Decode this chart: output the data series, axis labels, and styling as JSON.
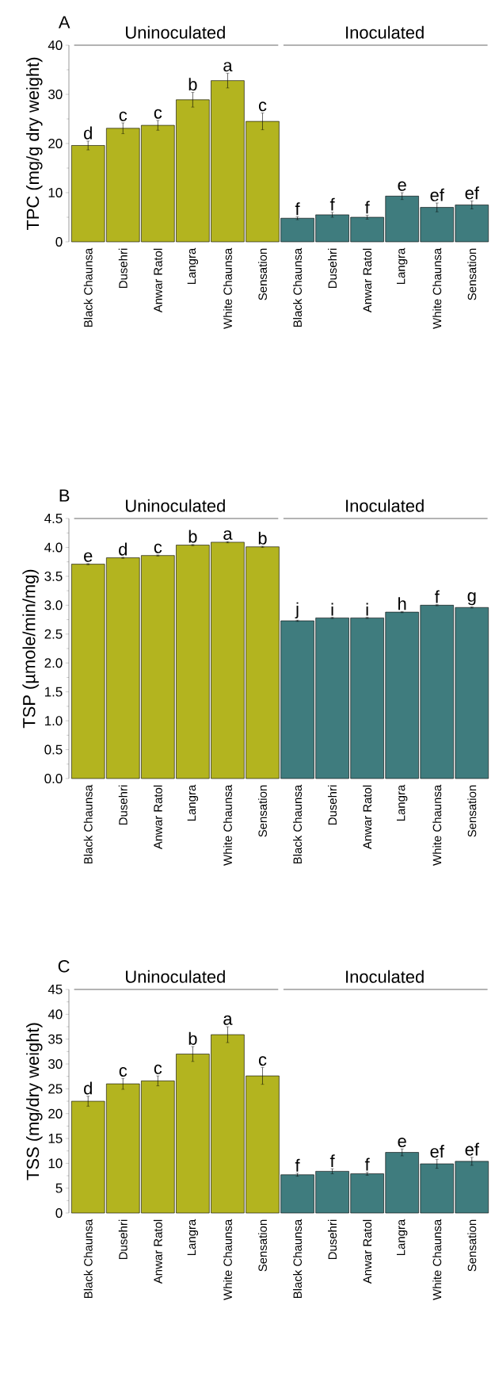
{
  "chart_data": [
    {
      "type": "bar",
      "title": "A",
      "ylabel": "TPC (mg/g dry weight)",
      "categories": [
        "Black Chaunsa",
        "Dusehri",
        "Anwar Ratol",
        "Langra",
        "White Chaunsa",
        "Sensation",
        "Black Chaunsa",
        "Dusehri",
        "Anwar Ratol",
        "Langra",
        "White Chaunsa",
        "Sensation"
      ],
      "series": [
        {
          "color": "#b3b41f",
          "values": [
            19.6,
            23.1,
            23.7,
            28.9,
            32.8,
            24.5,
            null,
            null,
            null,
            null,
            null,
            null
          ],
          "errors": [
            0.9,
            1.1,
            1.0,
            1.5,
            1.5,
            1.7,
            null,
            null,
            null,
            null,
            null,
            null
          ],
          "value_labels": [
            "d",
            "c",
            "c",
            "b",
            "a",
            "c",
            null,
            null,
            null,
            null,
            null,
            null
          ]
        },
        {
          "color": "#3f7c7e",
          "values": [
            null,
            null,
            null,
            null,
            null,
            null,
            4.8,
            5.5,
            5.0,
            9.3,
            7.0,
            7.5
          ],
          "errors": [
            null,
            null,
            null,
            null,
            null,
            null,
            0.3,
            0.5,
            0.4,
            0.7,
            0.9,
            0.8
          ],
          "value_labels": [
            null,
            null,
            null,
            null,
            null,
            null,
            "f",
            "f",
            "f",
            "e",
            "ef",
            "ef"
          ]
        }
      ],
      "annotations": [
        "Uninoculated",
        "Inoculated"
      ],
      "ylim": [
        0,
        40
      ],
      "yticks": [
        0,
        10,
        20,
        30,
        40
      ]
    },
    {
      "type": "bar",
      "title": "B",
      "ylabel": "TSP  (µmole/min/mg)",
      "categories": [
        "Black Chaunsa",
        "Dusehri",
        "Anwar Ratol",
        "Langra",
        "White Chaunsa",
        "Sensation",
        "Black Chaunsa",
        "Dusehri",
        "Anwar Ratol",
        "Langra",
        "White Chaunsa",
        "Sensation"
      ],
      "series": [
        {
          "color": "#b3b41f",
          "values": [
            3.71,
            3.82,
            3.86,
            4.04,
            4.09,
            4.01,
            null,
            null,
            null,
            null,
            null,
            null
          ],
          "errors": [
            0.01,
            0.01,
            0.01,
            0.01,
            0.01,
            0.01,
            null,
            null,
            null,
            null,
            null,
            null
          ],
          "value_labels": [
            "e",
            "d",
            "c",
            "b",
            "a",
            "b",
            null,
            null,
            null,
            null,
            null,
            null
          ]
        },
        {
          "color": "#3f7c7e",
          "values": [
            null,
            null,
            null,
            null,
            null,
            null,
            2.73,
            2.78,
            2.78,
            2.88,
            3.0,
            2.96
          ],
          "errors": [
            null,
            null,
            null,
            null,
            null,
            null,
            0.01,
            0.01,
            0.01,
            0.01,
            0.01,
            0.01
          ],
          "value_labels": [
            null,
            null,
            null,
            null,
            null,
            null,
            "j",
            "i",
            "i",
            "h",
            "f",
            "g"
          ]
        }
      ],
      "annotations": [
        "Uninoculated",
        "Inoculated"
      ],
      "ylim": [
        0,
        4.5
      ],
      "yticks": [
        {
          "value": 0,
          "label": "0.0"
        },
        {
          "value": 0.5,
          "label": "0.5"
        },
        {
          "value": 1,
          "label": "1.0"
        },
        {
          "value": 1.5,
          "label": "1.5"
        },
        {
          "value": 2,
          "label": "2.0"
        },
        {
          "value": 2.5,
          "label": "2.5"
        },
        {
          "value": 3,
          "label": "3.0"
        },
        {
          "value": 3.5,
          "label": "3.5"
        },
        {
          "value": 4,
          "label": "4.0"
        },
        {
          "value": 4.5,
          "label": "4.5"
        }
      ]
    },
    {
      "type": "bar",
      "title": "C",
      "ylabel": "TSS (mg/dry weight)",
      "categories": [
        "Black Chaunsa",
        "Dusehri",
        "Anwar Ratol",
        "Langra",
        "White Chaunsa",
        "Sensation",
        "Black Chaunsa",
        "Dusehri",
        "Anwar Ratol",
        "Langra",
        "White Chaunsa",
        "Sensation"
      ],
      "series": [
        {
          "color": "#b3b41f",
          "values": [
            22.5,
            26.0,
            26.6,
            32.0,
            35.9,
            27.6,
            null,
            null,
            null,
            null,
            null,
            null
          ],
          "errors": [
            1.0,
            1.1,
            1.0,
            1.5,
            1.6,
            1.7,
            null,
            null,
            null,
            null,
            null,
            null
          ],
          "value_labels": [
            "d",
            "c",
            "c",
            "b",
            "a",
            "c",
            null,
            null,
            null,
            null,
            null,
            null
          ]
        },
        {
          "color": "#3f7c7e",
          "values": [
            null,
            null,
            null,
            null,
            null,
            null,
            7.7,
            8.4,
            7.9,
            12.2,
            9.9,
            10.4
          ],
          "errors": [
            null,
            null,
            null,
            null,
            null,
            null,
            0.3,
            0.5,
            0.3,
            0.7,
            0.9,
            0.8
          ],
          "value_labels": [
            null,
            null,
            null,
            null,
            null,
            null,
            "f",
            "f",
            "f",
            "e",
            "ef",
            "ef"
          ]
        }
      ],
      "annotations": [
        "Uninoculated",
        "Inoculated"
      ],
      "ylim": [
        0,
        45
      ],
      "yticks": [
        0,
        5,
        10,
        15,
        20,
        25,
        30,
        35,
        40,
        45
      ]
    }
  ]
}
